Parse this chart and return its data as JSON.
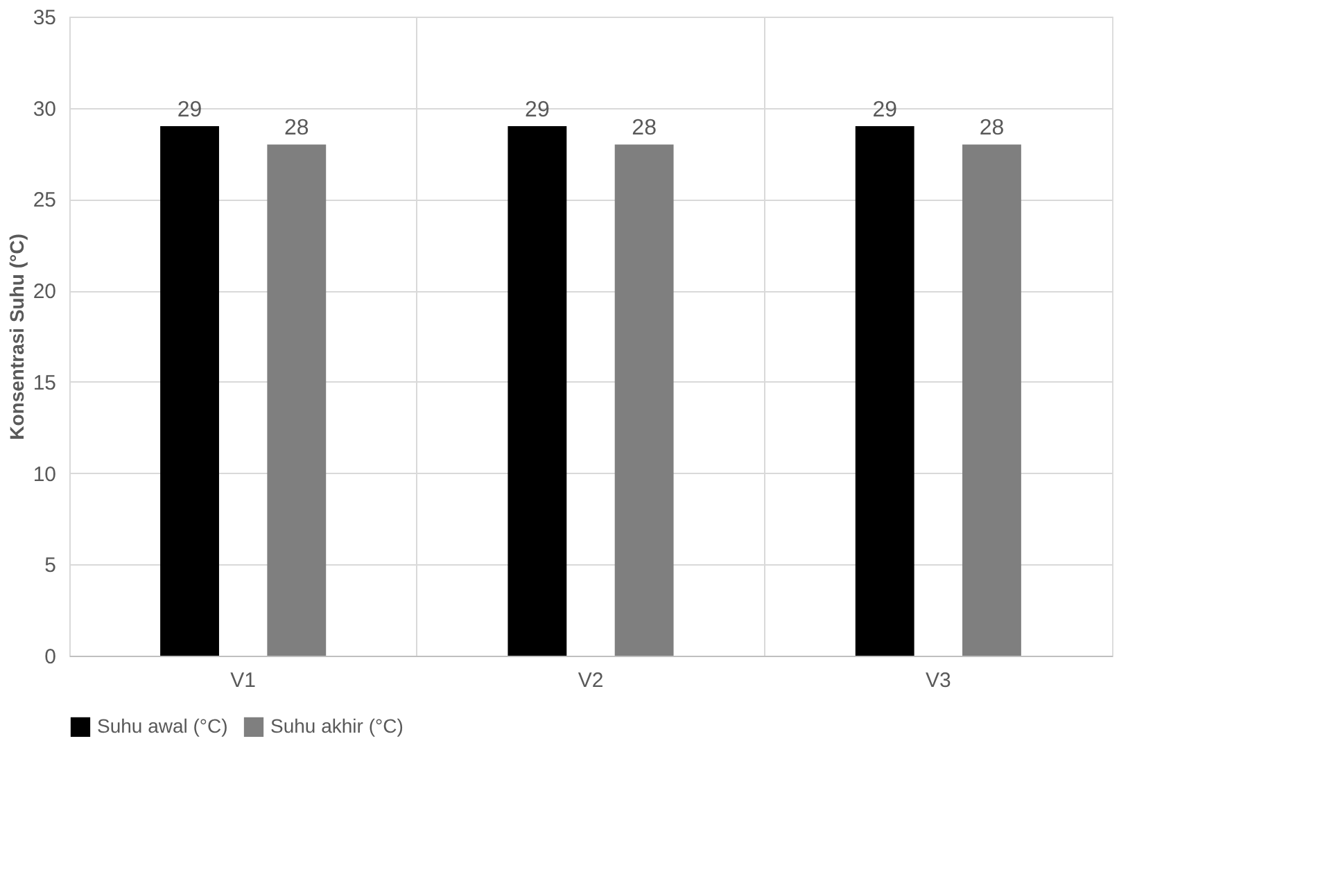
{
  "chart_data": {
    "type": "bar",
    "ylabel": "Konsentrasi Suhu (°C)",
    "categories": [
      "V1",
      "V2",
      "V3"
    ],
    "series": [
      {
        "name": "Suhu awal (°C)",
        "color": "#000000",
        "values": [
          29,
          29,
          29
        ]
      },
      {
        "name": "Suhu akhir (°C)",
        "color": "#7f7f7f",
        "values": [
          28,
          28,
          28
        ]
      }
    ],
    "ylim": [
      0,
      35
    ],
    "yticks": [
      0,
      5,
      10,
      15,
      20,
      25,
      30,
      35
    ],
    "grid": true,
    "legend": "bottom",
    "data_labels": true
  }
}
